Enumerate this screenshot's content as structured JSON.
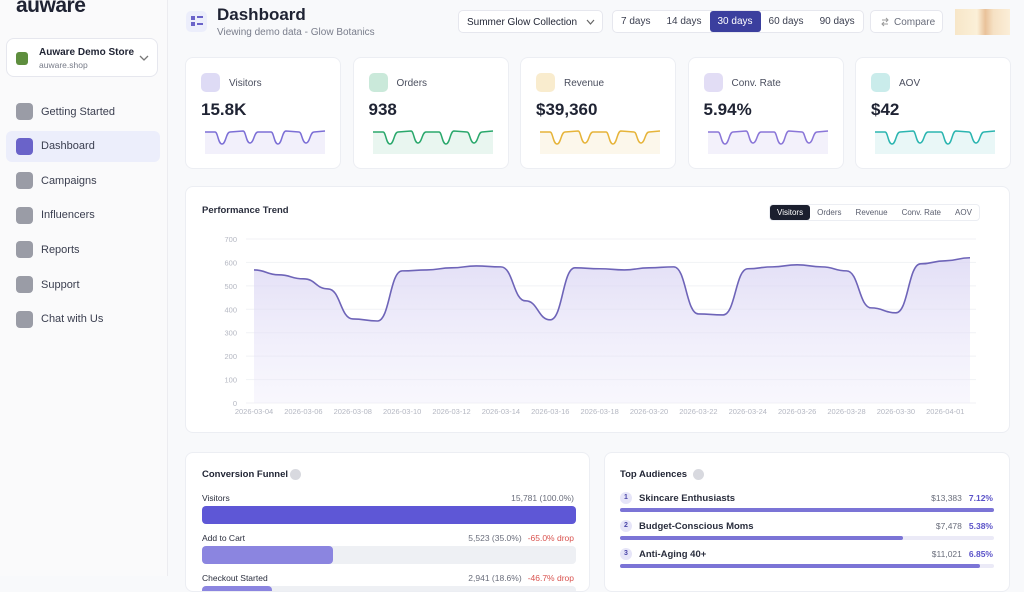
{
  "sidebar": {
    "brand": "auware",
    "store": {
      "name": "Auware Demo Store",
      "domain": "auware.shop"
    },
    "nav": [
      "Getting Started",
      "Dashboard",
      "Campaigns",
      "Influencers",
      "Reports",
      "Support",
      "Chat with Us"
    ]
  },
  "header": {
    "title": "Dashboard",
    "subtitle": "Viewing demo data - Glow Botanics",
    "collection": "Summer Glow Collection",
    "ranges": [
      "7 days",
      "14 days",
      "30 days",
      "60 days",
      "90 days"
    ],
    "compare": "Compare"
  },
  "kpis": [
    {
      "label": "Visitors",
      "value": "15.8K",
      "color": "#7c6fd6"
    },
    {
      "label": "Orders",
      "value": "938",
      "color": "#2aa86c"
    },
    {
      "label": "Revenue",
      "value": "$39,360",
      "color": "#e6b43a"
    },
    {
      "label": "Conv. Rate",
      "value": "5.94%",
      "color": "#8a76d8"
    },
    {
      "label": "AOV",
      "value": "$42",
      "color": "#2bb5b0"
    }
  ],
  "chart_data": {
    "type": "line",
    "title": "Performance Trend",
    "tabs": [
      "Visitors",
      "Orders",
      "Revenue",
      "Conv. Rate",
      "AOV"
    ],
    "categories": [
      "2026-03-04",
      null,
      "2026-03-06",
      null,
      "2026-03-08",
      null,
      "2026-03-10",
      null,
      "2026-03-12",
      null,
      "2026-03-14",
      null,
      "2026-03-16",
      null,
      "2026-03-18",
      null,
      "2026-03-20",
      null,
      "2026-03-22",
      null,
      "2026-03-24",
      null,
      "2026-03-26",
      null,
      "2026-03-28",
      null,
      "2026-03-30",
      null,
      "2026-04-01",
      null
    ],
    "values": [
      568,
      547,
      530,
      487,
      359,
      350,
      564,
      568,
      577,
      585,
      581,
      436,
      355,
      577,
      573,
      568,
      577,
      581,
      380,
      376,
      573,
      581,
      590,
      581,
      564,
      406,
      385,
      594,
      607,
      620
    ],
    "color": "#6e64b8",
    "ylim": [
      0,
      700
    ],
    "yticks": [
      0,
      100,
      200,
      300,
      400,
      500,
      600,
      700
    ],
    "grid": true
  },
  "funnel": {
    "title": "Conversion Funnel",
    "rows": [
      {
        "label": "Visitors",
        "value": "15,781 (100.0%)",
        "share": 100
      },
      {
        "label": "Add to Cart",
        "value": "5,523 (35.0%)",
        "drop": "-65.0% drop",
        "share": 35
      },
      {
        "label": "Checkout Started",
        "value": "2,941 (18.6%)",
        "drop": "-46.7% drop",
        "share": 18.6
      }
    ]
  },
  "audiences": {
    "title": "Top Audiences",
    "rows": [
      {
        "rank": 1,
        "name": "Skincare Enthusiasts",
        "revenue": "$13,383",
        "rate": 7.12,
        "rate_label": "7.12%"
      },
      {
        "rank": 2,
        "name": "Budget-Conscious Moms",
        "revenue": "$7,478",
        "rate": 5.38,
        "rate_label": "5.38%"
      },
      {
        "rank": 3,
        "name": "Anti-Aging 40+",
        "revenue": "$11,021",
        "rate": 6.85,
        "rate_label": "6.85%"
      }
    ]
  }
}
